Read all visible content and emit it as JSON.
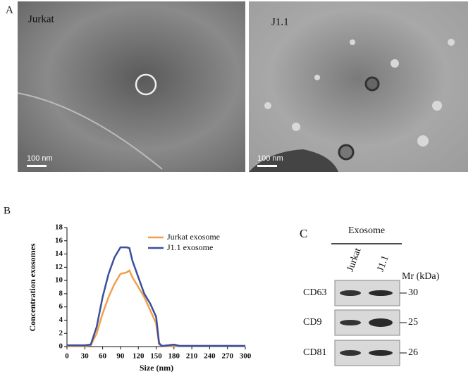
{
  "panel_labels": [
    "A",
    "B",
    "C"
  ],
  "micrographs": [
    {
      "label": "Jurkat",
      "scale_bar": "100 nm"
    },
    {
      "label": "J1.1",
      "scale_bar": "100 nm"
    }
  ],
  "chart_data": {
    "type": "line",
    "xlabel": "Size (nm)",
    "ylabel": "Concentration exosomes",
    "x": [
      0,
      30,
      40,
      50,
      60,
      70,
      80,
      90,
      100,
      105,
      110,
      120,
      130,
      140,
      150,
      155,
      160,
      170,
      180,
      190,
      200,
      300
    ],
    "series": [
      {
        "name": "Jurkat exosome",
        "color": "#f0a04b",
        "values": [
          0.1,
          0.1,
          0.2,
          2,
          5,
          7.5,
          9.5,
          11,
          11.2,
          11.5,
          10.5,
          9,
          7.5,
          5.5,
          3.5,
          0.3,
          0.1,
          0.1,
          0.1,
          0.1,
          0.1,
          0.1
        ]
      },
      {
        "name": "J1.1 exosome",
        "color": "#3a4f9c",
        "values": [
          0.2,
          0.2,
          0.3,
          3,
          7.5,
          11,
          13.5,
          15,
          15,
          14.9,
          13,
          10.5,
          8,
          6.5,
          4.5,
          0.5,
          0.1,
          0.2,
          0.3,
          0.1,
          0.1,
          0.1
        ]
      }
    ],
    "xlim": [
      0,
      300
    ],
    "xticks": [
      0,
      30,
      60,
      90,
      120,
      150,
      180,
      210,
      240,
      270,
      300
    ],
    "ylim": [
      0,
      18
    ],
    "yticks": [
      0,
      2,
      4,
      6,
      8,
      10,
      12,
      14,
      16,
      18
    ],
    "legend": "upper right"
  },
  "blot": {
    "title": "Exosome",
    "lanes": [
      "Jurkat",
      "J1.1"
    ],
    "marker_title": "Mr (kDa)",
    "rows": [
      {
        "label": "CD63",
        "marker": 30
      },
      {
        "label": "CD9",
        "marker": 25
      },
      {
        "label": "CD81",
        "marker": 26
      }
    ]
  }
}
